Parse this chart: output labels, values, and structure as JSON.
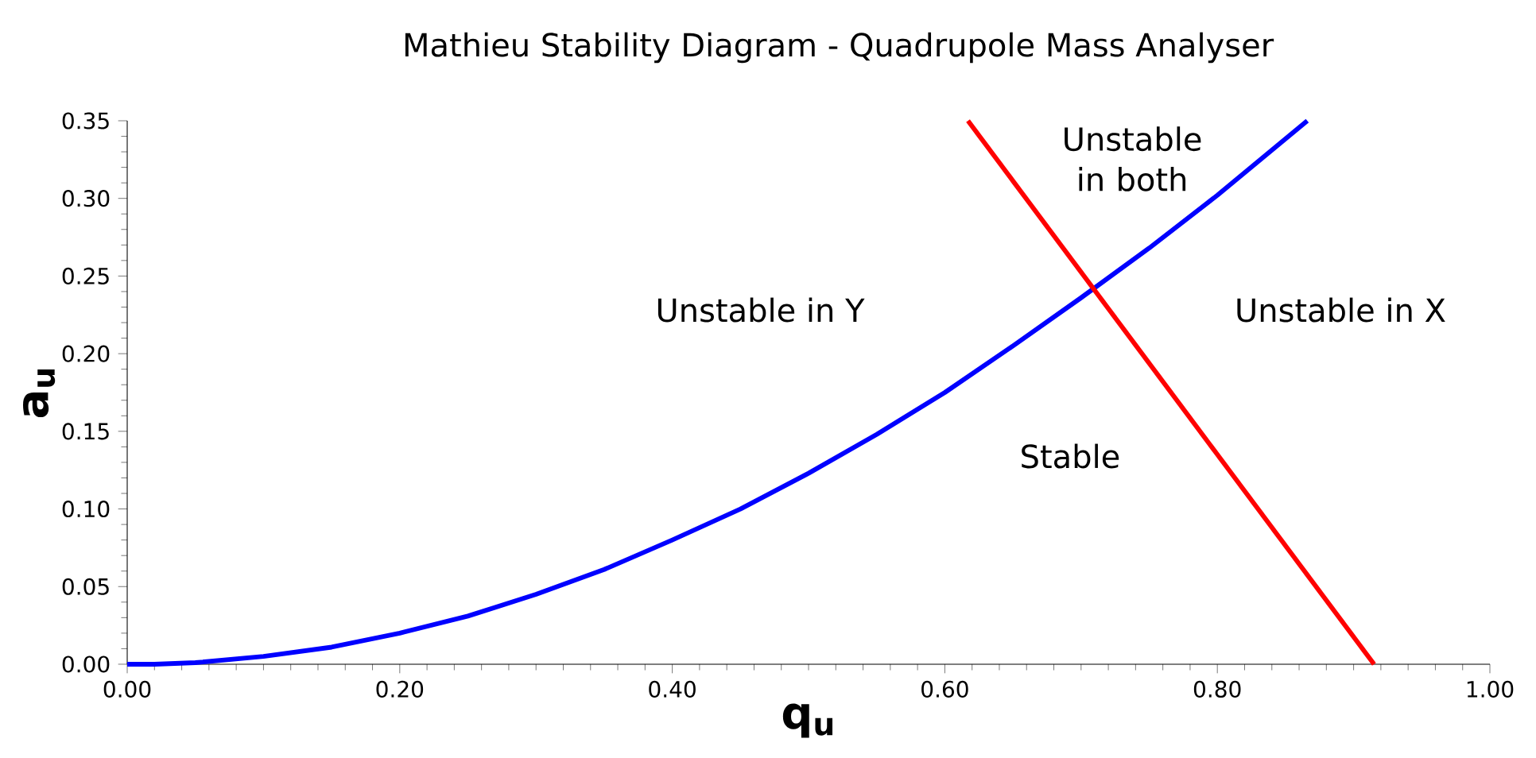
{
  "chart_data": {
    "type": "line",
    "title": "Mathieu Stability Diagram - Quadrupole Mass Analyser",
    "xlabel": "q$_{u}$",
    "ylabel": "a$_{u}$",
    "series": [
      {
        "color": "#0000ff",
        "x": [
          0,
          0.02,
          0.05,
          0.1,
          0.15,
          0.2,
          0.25,
          0.3,
          0.35,
          0.4,
          0.45,
          0.5,
          0.55,
          0.6,
          0.65,
          0.7,
          0.75,
          0.8,
          0.866
        ],
        "values": [
          0,
          0,
          0.001,
          0.005,
          0.011,
          0.02,
          0.031,
          0.045,
          0.061,
          0.08,
          0.1,
          0.123,
          0.148,
          0.175,
          0.205,
          0.236,
          0.268,
          0.302,
          0.35
        ]
      },
      {
        "color": "#ff0000",
        "x": [
          0.617,
          0.915
        ],
        "values": [
          0.35,
          0
        ]
      }
    ],
    "xlim": [
      0,
      1
    ],
    "ylim": [
      0,
      0.35
    ],
    "xticks": [
      {
        "value": 0,
        "label": "0.00"
      },
      {
        "value": 0.2,
        "label": "0.20"
      },
      {
        "value": 0.4,
        "label": "0.40"
      },
      {
        "value": 0.6,
        "label": "0.60"
      },
      {
        "value": 0.8,
        "label": "0.80"
      },
      {
        "value": 1,
        "label": "1.00"
      }
    ],
    "yticks": [
      {
        "value": 0,
        "label": "0.00"
      },
      {
        "value": 0.05,
        "label": "0.05"
      },
      {
        "value": 0.1,
        "label": "0.10"
      },
      {
        "value": 0.15,
        "label": "0.15"
      },
      {
        "value": 0.2,
        "label": "0.20"
      },
      {
        "value": 0.25,
        "label": "0.25"
      },
      {
        "value": 0.3,
        "label": "0.30"
      },
      {
        "value": 0.35,
        "label": "0.35"
      }
    ],
    "grid": false,
    "marker": "none",
    "line_style": "solid",
    "annotations": [
      "Unstable in Y",
      "Unstable in X",
      "Unstable in both",
      "Stable"
    ]
  }
}
